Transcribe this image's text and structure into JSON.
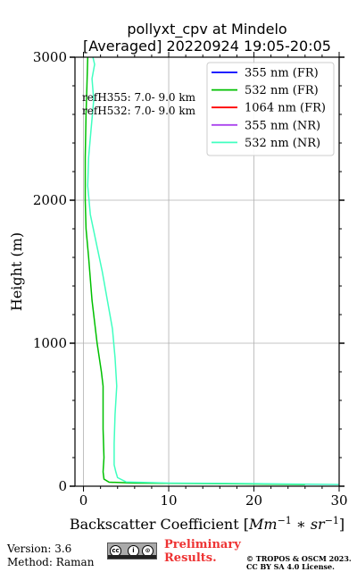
{
  "chart_data": {
    "type": "line",
    "title": [
      "pollyxt_cpv at Mindelo",
      "[Averaged] 20220924 19:05-20:05"
    ],
    "xlabel": "Backscatter Coefficient [Mm^{-1} * sr^{-1}]",
    "ylabel": "Height (m)",
    "xlim": [
      -1,
      30
    ],
    "ylim": [
      0,
      3000
    ],
    "xticks": [
      0,
      10,
      20,
      30
    ],
    "yticks": [
      0,
      1000,
      2000,
      3000
    ],
    "grid": true,
    "legend_position": "top-right",
    "annotations": [
      "refH355:  7.0- 9.0 km",
      "refH532:  7.0- 9.0 km"
    ],
    "series": [
      {
        "name": "355 nm (FR)",
        "color": "#0000ff",
        "points": []
      },
      {
        "name": "532 nm (FR)",
        "color": "#00c000",
        "points": [
          [
            26,
            12
          ],
          [
            15,
            18
          ],
          [
            6,
            22
          ],
          [
            3,
            28
          ],
          [
            2.4,
            50
          ],
          [
            2.3,
            100
          ],
          [
            2.4,
            200
          ],
          [
            2.3,
            400
          ],
          [
            2.3,
            700
          ],
          [
            2.1,
            800
          ],
          [
            1.6,
            1000
          ],
          [
            1.0,
            1300
          ],
          [
            0.6,
            1600
          ],
          [
            0.3,
            1800
          ],
          [
            0.2,
            2000
          ],
          [
            0.2,
            2300
          ],
          [
            0.3,
            2600
          ],
          [
            0.4,
            2800
          ],
          [
            0.5,
            3000
          ]
        ]
      },
      {
        "name": "1064 nm (FR)",
        "color": "#ff0000",
        "points": []
      },
      {
        "name": "355 nm (NR)",
        "color": "#aa44ee",
        "points": []
      },
      {
        "name": "532 nm (NR)",
        "color": "#40ffc0",
        "points": [
          [
            30,
            12
          ],
          [
            20,
            18
          ],
          [
            10,
            22
          ],
          [
            5,
            30
          ],
          [
            4,
            60
          ],
          [
            3.8,
            100
          ],
          [
            3.6,
            150
          ],
          [
            3.6,
            300
          ],
          [
            3.7,
            500
          ],
          [
            3.9,
            700
          ],
          [
            3.7,
            900
          ],
          [
            3.4,
            1100
          ],
          [
            2.8,
            1300
          ],
          [
            2.2,
            1500
          ],
          [
            1.5,
            1700
          ],
          [
            0.8,
            1900
          ],
          [
            0.5,
            2100
          ],
          [
            0.6,
            2300
          ],
          [
            0.9,
            2500
          ],
          [
            1.2,
            2700
          ],
          [
            1.0,
            2850
          ],
          [
            1.3,
            2950
          ],
          [
            1.1,
            3000
          ]
        ]
      }
    ]
  },
  "footer": {
    "version": "Version: 3.6",
    "method": "Method: Raman",
    "preliminary_line1": "Preliminary",
    "preliminary_line2": "Results.",
    "copyright_line1": "© TROPOS & OSCM 2023.",
    "copyright_line2": "CC BY SA 4.0 License."
  },
  "license_badge": {
    "icon": "cc-by-sa-icon",
    "symbols": [
      "cc",
      "i",
      "⊙"
    ]
  }
}
